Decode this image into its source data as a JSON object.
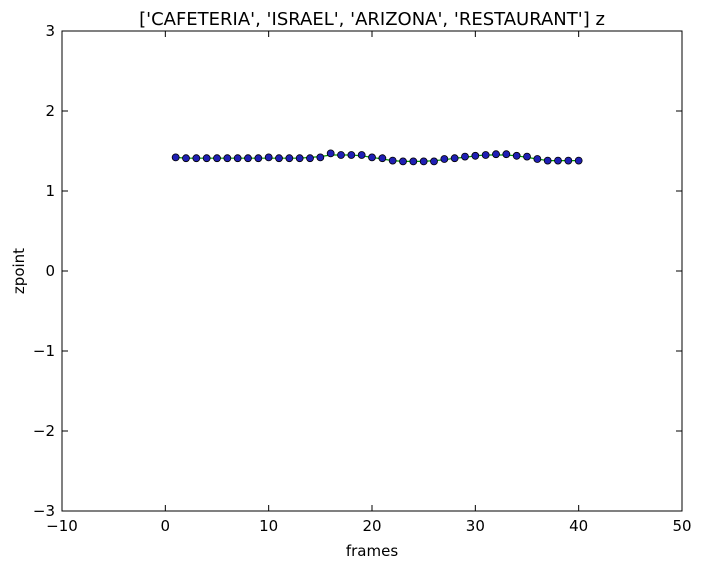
{
  "chart_data": {
    "type": "line",
    "title": "['CAFETERIA', 'ISRAEL', 'ARIZONA', 'RESTAURANT'] z",
    "xlabel": "frames",
    "ylabel": "zpoint",
    "xlim": [
      -10,
      50
    ],
    "ylim": [
      -3,
      3
    ],
    "xticks": [
      -10,
      0,
      10,
      20,
      30,
      40,
      50
    ],
    "xtick_labels": [
      "−10",
      "0",
      "10",
      "20",
      "30",
      "40",
      "50"
    ],
    "yticks": [
      -3,
      -2,
      -1,
      0,
      1,
      2,
      3
    ],
    "ytick_labels": [
      "−3",
      "−2",
      "−1",
      "0",
      "1",
      "2",
      "3"
    ],
    "grid": false,
    "legend": null,
    "series": [
      {
        "style": "markers",
        "color": "#1f1fb4",
        "x": [
          1,
          2,
          3,
          4,
          5,
          6,
          7,
          8,
          9,
          10,
          11,
          12,
          13,
          14,
          15,
          16,
          17,
          18,
          19,
          20,
          21,
          22,
          23,
          24,
          25,
          26,
          27,
          28,
          29,
          30,
          31,
          32,
          33,
          34,
          35,
          36,
          37,
          38,
          39,
          40
        ],
        "y": [
          1.42,
          1.41,
          1.41,
          1.41,
          1.41,
          1.41,
          1.41,
          1.41,
          1.41,
          1.42,
          1.41,
          1.41,
          1.41,
          1.41,
          1.42,
          1.47,
          1.45,
          1.45,
          1.45,
          1.42,
          1.41,
          1.38,
          1.37,
          1.37,
          1.37,
          1.37,
          1.4,
          1.41,
          1.43,
          1.44,
          1.45,
          1.46,
          1.46,
          1.44,
          1.43,
          1.4,
          1.38,
          1.38,
          1.38,
          1.38
        ]
      },
      {
        "style": "line",
        "color": "#009900",
        "x": [
          1,
          2,
          3,
          4,
          5,
          6,
          7,
          8,
          9,
          10,
          11,
          12,
          13,
          14,
          15,
          16,
          17,
          18,
          19,
          20,
          21,
          22,
          23,
          24,
          25,
          26,
          27,
          28,
          29,
          30,
          31,
          32,
          33,
          34,
          35,
          36,
          37,
          38,
          39,
          40
        ],
        "y": [
          1.42,
          1.41,
          1.41,
          1.41,
          1.41,
          1.41,
          1.41,
          1.41,
          1.41,
          1.41,
          1.41,
          1.41,
          1.41,
          1.42,
          1.43,
          1.45,
          1.45,
          1.45,
          1.44,
          1.42,
          1.4,
          1.38,
          1.37,
          1.37,
          1.37,
          1.38,
          1.39,
          1.41,
          1.42,
          1.44,
          1.45,
          1.45,
          1.45,
          1.44,
          1.42,
          1.4,
          1.38,
          1.38,
          1.38,
          1.38
        ]
      }
    ]
  }
}
